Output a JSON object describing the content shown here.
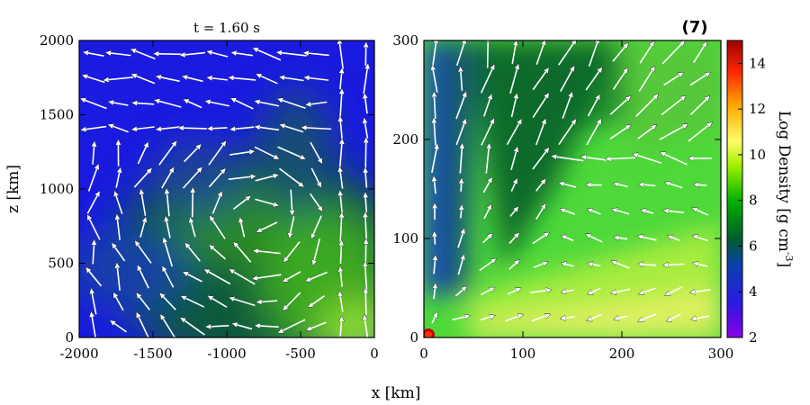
{
  "chart_data": [
    {
      "type": "heatmap",
      "panel": "left",
      "title": "t = 1.60 s",
      "xlabel": "",
      "ylabel": "z [km]",
      "xlim": [
        -2000,
        0
      ],
      "ylim": [
        0,
        2000
      ],
      "xticks": [
        "-2000",
        "-1500",
        "-1000",
        "-500",
        "0"
      ],
      "xtick_values": [
        -2000,
        -1500,
        -1000,
        -500,
        0
      ],
      "yticks": [
        "0",
        "500",
        "1000",
        "1500",
        "2000"
      ],
      "ytick_values": [
        0,
        500,
        1000,
        1500,
        2000
      ],
      "background": "log density field with white velocity arrows",
      "log_density_samples": {
        "x": [
          -2000,
          -1500,
          -1000,
          -500,
          0
        ],
        "z": [
          0,
          500,
          1000,
          1500,
          2000
        ],
        "values": [
          [
            4.5,
            5.8,
            6.4,
            7.0,
            8.2
          ],
          [
            4.2,
            5.0,
            5.8,
            6.0,
            5.2
          ],
          [
            3.8,
            4.0,
            5.0,
            5.4,
            4.2
          ],
          [
            3.6,
            3.7,
            3.8,
            4.4,
            3.8
          ],
          [
            3.6,
            3.6,
            3.6,
            3.6,
            3.4
          ]
        ]
      }
    },
    {
      "type": "heatmap",
      "panel": "right",
      "xlabel": "x [km]",
      "ylabel": "",
      "xlim": [
        0,
        300
      ],
      "ylim": [
        0,
        300
      ],
      "xticks": [
        "0",
        "100",
        "200",
        "300"
      ],
      "xtick_values": [
        0,
        100,
        200,
        300
      ],
      "yticks": [
        "0",
        "100",
        "200",
        "300"
      ],
      "ytick_values": [
        0,
        100,
        200,
        300
      ],
      "background": "log density field with white velocity arrows",
      "log_density_samples": {
        "x": [
          0,
          75,
          150,
          225,
          300
        ],
        "z": [
          0,
          75,
          150,
          225,
          300
        ],
        "values": [
          [
            14.5,
            9.6,
            9.2,
            9.0,
            8.8
          ],
          [
            4.5,
            7.4,
            7.8,
            7.8,
            7.8
          ],
          [
            4.0,
            6.2,
            7.0,
            7.6,
            7.8
          ],
          [
            3.8,
            5.6,
            6.2,
            7.2,
            7.6
          ],
          [
            3.8,
            5.2,
            5.6,
            6.6,
            7.2
          ]
        ]
      }
    }
  ],
  "colorbar": {
    "label_main": "Log Density [g cm",
    "label_exp": "-3",
    "label_close": "]",
    "range": [
      2,
      15
    ],
    "ticks": [
      "2",
      "4",
      "6",
      "8",
      "10",
      "12",
      "14"
    ],
    "tick_values": [
      2,
      4,
      6,
      8,
      10,
      12,
      14
    ],
    "colors": [
      "#8a00e6",
      "#1a1ad9",
      "#005c2e",
      "#00c800",
      "#b4f000",
      "#ffff66",
      "#ffaa00",
      "#ff2a00",
      "#a00000"
    ]
  },
  "panel_number": "(7)"
}
